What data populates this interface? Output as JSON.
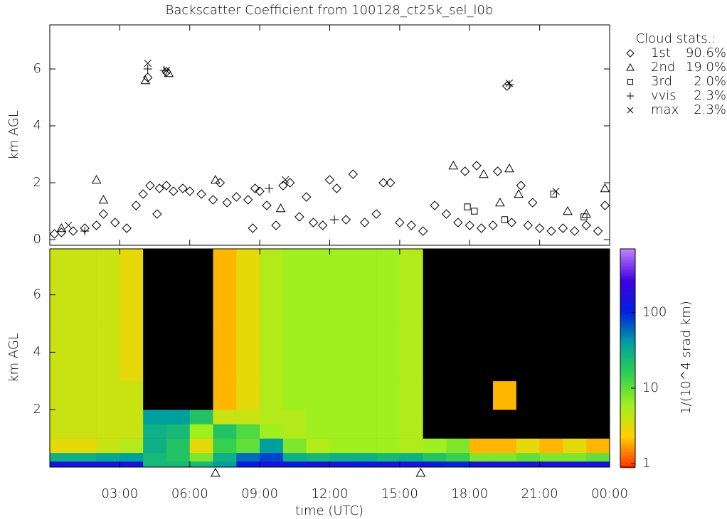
{
  "chart_data": [
    {
      "type": "scatter",
      "title": "Backscatter Coefficient from 100128_ct25k_sel_l0b",
      "y_label": "km AGL",
      "xlim": [
        0,
        24
      ],
      "xticks": [
        3,
        6,
        9,
        12,
        15,
        18,
        21,
        24
      ],
      "ylim": [
        -0.2,
        7.55
      ],
      "yticks": [
        0,
        2,
        4,
        6
      ],
      "legend": {
        "title": "Cloud stats.:",
        "position": "right"
      },
      "series": [
        {
          "name": "1st",
          "stats": "90.6%",
          "marker": "diamond",
          "color": "#000000",
          "x": [
            0.2,
            0.5,
            1,
            1.5,
            2,
            2.3,
            2.8,
            3.3,
            3.7,
            4,
            4.3,
            4.7,
            5,
            5.3,
            5.7,
            6,
            6.5,
            7,
            7.3,
            7.6,
            8,
            8.5,
            8.7,
            9,
            9.3,
            9.7,
            10,
            10.3,
            10.7,
            11,
            11.3,
            11.7,
            12,
            12.3,
            12.7,
            13,
            13.5,
            14,
            14.3,
            14.6,
            15,
            15.5,
            16,
            16.5,
            17,
            17.5,
            18,
            18.5,
            19,
            19.6,
            19.8,
            20.2,
            20.5,
            21,
            21.5,
            22,
            22.5,
            23,
            23.5,
            23.8,
            4.2,
            5.0,
            4.6,
            8.8,
            17.8,
            18.3,
            19.2,
            20.7
          ],
          "values": [
            0.2,
            0.25,
            0.3,
            0.4,
            0.5,
            0.9,
            0.6,
            0.4,
            1.2,
            1.6,
            1.9,
            1.8,
            1.9,
            1.7,
            1.8,
            1.7,
            1.6,
            1.4,
            2.0,
            1.3,
            1.5,
            1.4,
            0.4,
            1.7,
            1.2,
            0.5,
            1.9,
            2.0,
            0.8,
            1.5,
            0.6,
            0.5,
            2.1,
            1.8,
            0.7,
            2.3,
            0.6,
            0.9,
            2.0,
            2.0,
            0.6,
            0.5,
            0.3,
            1.2,
            0.9,
            0.6,
            0.5,
            0.4,
            0.5,
            5.4,
            0.6,
            1.9,
            0.5,
            0.4,
            0.3,
            0.4,
            0.3,
            0.5,
            0.3,
            1.2,
            5.7,
            5.9,
            0.9,
            1.8,
            2.4,
            2.6,
            2.4,
            1.3
          ]
        },
        {
          "name": "2nd",
          "stats": "19.0%",
          "marker": "triangle",
          "color": "#000000",
          "x": [
            0.5,
            2,
            2.3,
            4.1,
            5.1,
            17.3,
            18.6,
            19.3,
            19.7,
            20.1,
            22.2,
            23,
            23.8,
            7.1,
            9.9
          ],
          "values": [
            0.4,
            2.1,
            1.4,
            5.6,
            5.85,
            2.6,
            2.3,
            1.3,
            2.5,
            1.6,
            1.0,
            0.9,
            1.8,
            2.1,
            1.1
          ]
        },
        {
          "name": "3rd",
          "stats": "2.0%",
          "marker": "square",
          "color": "#000000",
          "x": [
            17.9,
            18.2,
            21.6,
            22.9,
            19.5
          ],
          "values": [
            1.15,
            1.0,
            1.6,
            0.8,
            0.7
          ]
        },
        {
          "name": "vvis",
          "stats": "2.3%",
          "marker": "plus",
          "color": "#000000",
          "x": [
            4.2,
            4.9,
            19.7,
            9.4,
            1.5,
            12.2
          ],
          "values": [
            6.0,
            5.95,
            5.45,
            1.8,
            0.3,
            0.7
          ]
        },
        {
          "name": "max",
          "stats": "2.3%",
          "marker": "cross",
          "color": "#000000",
          "x": [
            4.2,
            5.0,
            19.7,
            10.1,
            21.7,
            0.8
          ],
          "values": [
            6.2,
            5.95,
            5.5,
            2.1,
            1.7,
            0.5
          ]
        }
      ]
    },
    {
      "type": "heatmap",
      "x_label": "time (UTC)",
      "y_label": "km AGL",
      "colorbar_label": "1/(10^4 srad km)",
      "xlim": [
        0,
        24
      ],
      "xticks": [
        {
          "value": 3,
          "label": "03:00"
        },
        {
          "value": 6,
          "label": "06:00"
        },
        {
          "value": 9,
          "label": "09:00"
        },
        {
          "value": 12,
          "label": "12:00"
        },
        {
          "value": 15,
          "label": "15:00"
        },
        {
          "value": 18,
          "label": "18:00"
        },
        {
          "value": 21,
          "label": "21:00"
        },
        {
          "value": 24,
          "label": "00:00"
        }
      ],
      "ylim": [
        0,
        7.6
      ],
      "yticks": [
        2,
        4,
        6
      ],
      "clim": [
        0.9,
        700
      ],
      "cticks": [
        1,
        10,
        100
      ],
      "log_color": true,
      "colormap": [
        "#ff3000",
        "#ffd000",
        "#a0f020",
        "#30d050",
        "#00a0a0",
        "#0020e0",
        "#4000e0",
        "#c080ff"
      ],
      "x_edges": [
        0,
        1,
        2,
        3,
        4,
        5,
        6,
        7,
        8,
        9,
        10,
        11,
        12,
        13,
        14,
        15,
        16,
        17,
        18,
        19,
        20,
        21,
        22,
        23,
        24
      ],
      "y_edges": [
        0,
        0.2,
        0.5,
        1,
        1.5,
        2,
        3,
        5,
        7.6
      ],
      "z": [
        [
          150,
          150,
          150,
          150,
          25,
          25,
          25,
          40,
          120,
          150,
          120,
          150,
          150,
          120,
          150,
          150,
          120,
          100,
          150,
          150,
          150,
          150,
          150,
          150
        ],
        [
          30,
          30,
          35,
          40,
          25,
          20,
          8,
          30,
          60,
          80,
          30,
          25,
          30,
          30,
          25,
          30,
          20,
          15,
          8,
          8,
          10,
          8,
          8,
          10
        ],
        [
          3,
          3,
          4,
          5,
          30,
          20,
          3,
          15,
          10,
          40,
          8,
          5,
          6,
          6,
          6,
          5,
          6,
          8,
          2,
          2,
          3,
          2,
          3,
          2
        ],
        [
          4,
          4,
          4,
          4,
          30,
          25,
          6,
          20,
          12,
          6,
          5,
          6,
          6,
          6,
          6,
          5,
          0.5,
          0.5,
          0.5,
          0.5,
          0.5,
          0.5,
          0.5,
          0.5
        ],
        [
          4,
          4,
          4,
          4,
          40,
          40,
          20,
          4,
          4,
          5,
          5,
          6,
          6,
          6,
          6,
          5,
          0.5,
          0.5,
          0.5,
          0.5,
          0.5,
          0.5,
          0.5,
          0.5
        ],
        [
          4,
          4,
          4,
          4,
          0.5,
          0.5,
          0.5,
          2,
          3,
          5,
          6,
          6,
          6,
          6,
          6,
          5,
          0.5,
          0.5,
          0.5,
          2,
          0.5,
          0.5,
          0.5,
          0.5
        ],
        [
          4,
          4,
          4,
          3,
          0.5,
          0.5,
          0.5,
          2,
          3,
          5,
          6,
          6,
          6,
          6,
          6,
          5,
          0.5,
          0.5,
          0.5,
          0.5,
          0.5,
          0.5,
          0.5,
          0.5
        ],
        [
          4,
          4,
          4,
          3,
          0.5,
          0.5,
          0.5,
          2,
          3,
          5,
          6,
          6,
          6,
          6,
          6,
          5,
          0.5,
          0.5,
          0.5,
          0.5,
          0.5,
          0.5,
          0.5,
          0.5
        ]
      ],
      "flags": [
        7.1,
        15.9
      ]
    }
  ]
}
